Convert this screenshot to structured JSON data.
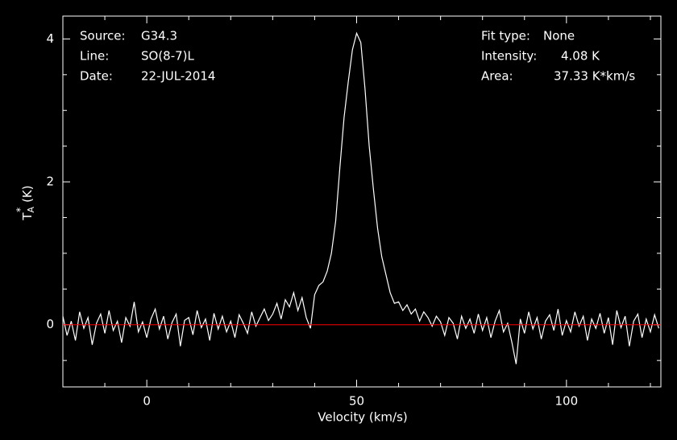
{
  "chart_data": {
    "type": "line",
    "xlabel": "Velocity (km/s)",
    "ylabel": {
      "main": "T",
      "sub": "A",
      "sup": "*",
      "unit": "(K)"
    },
    "annotations_left": [
      [
        "Source:",
        "G34.3"
      ],
      [
        "Line:",
        "SO(8-7)L"
      ],
      [
        "Date:",
        "22-JUL-2014"
      ]
    ],
    "annotations_right": [
      [
        "Fit type:",
        "None"
      ],
      [
        "Intensity:",
        "4.08 K"
      ],
      [
        "Area:",
        "37.33 K*km/s"
      ]
    ],
    "xlim": [
      -20,
      122.5
    ],
    "ylim": [
      -0.87,
      4.32
    ],
    "xticks": [
      0,
      50,
      100
    ],
    "yticks": [
      0,
      2,
      4
    ],
    "xminorticks": [
      -10,
      10,
      20,
      30,
      40,
      60,
      70,
      80,
      90,
      110,
      120
    ],
    "yminorticks": [
      -0.5,
      0.5,
      1,
      1.5,
      2.5,
      3,
      3.5
    ],
    "reference_line": {
      "value": 0,
      "color": "#ff0000"
    },
    "series": [
      {
        "color": "#ffffff",
        "x": [
          -20,
          -19,
          -18,
          -17,
          -16,
          -15,
          -14,
          -13,
          -12,
          -11,
          -10,
          -9,
          -8,
          -7,
          -6,
          -5,
          -4,
          -3,
          -2,
          -1,
          0,
          1,
          2,
          3,
          4,
          5,
          6,
          7,
          8,
          9,
          10,
          11,
          12,
          13,
          14,
          15,
          16,
          17,
          18,
          19,
          20,
          21,
          22,
          23,
          24,
          25,
          26,
          27,
          28,
          29,
          30,
          31,
          32,
          33,
          34,
          35,
          36,
          37,
          38,
          39,
          40,
          41,
          42,
          43,
          44,
          45,
          46,
          47,
          48,
          49,
          50,
          51,
          52,
          53,
          54,
          55,
          56,
          57,
          58,
          59,
          60,
          61,
          62,
          63,
          64,
          65,
          66,
          67,
          68,
          69,
          70,
          71,
          72,
          73,
          74,
          75,
          76,
          77,
          78,
          79,
          80,
          81,
          82,
          83,
          84,
          85,
          86,
          87,
          88,
          89,
          90,
          91,
          92,
          93,
          94,
          95,
          96,
          97,
          98,
          99,
          100,
          101,
          102,
          103,
          104,
          105,
          106,
          107,
          108,
          109,
          110,
          111,
          112,
          113,
          114,
          115,
          116,
          117,
          118,
          119,
          120,
          121,
          122
        ],
        "values": [
          0.12,
          -0.15,
          0.05,
          -0.22,
          0.18,
          -0.05,
          0.1,
          -0.28,
          0.02,
          0.15,
          -0.12,
          0.2,
          -0.08,
          0.05,
          -0.25,
          0.1,
          -0.02,
          0.32,
          -0.1,
          0.04,
          -0.18,
          0.08,
          0.22,
          -0.06,
          0.12,
          -0.2,
          0.03,
          0.15,
          -0.3,
          0.06,
          0.1,
          -0.14,
          0.2,
          -0.04,
          0.08,
          -0.22,
          0.16,
          -0.06,
          0.12,
          -0.1,
          0.05,
          -0.18,
          0.14,
          0.02,
          -0.12,
          0.18,
          -0.02,
          0.1,
          0.22,
          0.06,
          0.15,
          0.3,
          0.08,
          0.35,
          0.25,
          0.45,
          0.2,
          0.38,
          0.1,
          -0.05,
          0.42,
          0.55,
          0.6,
          0.75,
          1.0,
          1.45,
          2.2,
          2.9,
          3.4,
          3.85,
          4.08,
          3.95,
          3.3,
          2.5,
          1.9,
          1.35,
          0.95,
          0.7,
          0.45,
          0.3,
          0.32,
          0.2,
          0.28,
          0.15,
          0.22,
          0.05,
          0.18,
          0.1,
          -0.02,
          0.12,
          0.04,
          -0.15,
          0.1,
          0.02,
          -0.2,
          0.12,
          -0.05,
          0.08,
          -0.12,
          0.15,
          -0.08,
          0.1,
          -0.18,
          0.05,
          0.2,
          -0.1,
          0.02,
          -0.25,
          -0.55,
          0.08,
          -0.12,
          0.18,
          -0.06,
          0.1,
          -0.2,
          0.05,
          0.14,
          -0.08,
          0.22,
          -0.15,
          0.06,
          -0.1,
          0.18,
          -0.02,
          0.12,
          -0.22,
          0.08,
          -0.05,
          0.16,
          -0.12,
          0.1,
          -0.28,
          0.2,
          -0.04,
          0.12,
          -0.3,
          0.05,
          0.15,
          -0.18,
          0.08,
          -0.1,
          0.14,
          -0.05
        ]
      }
    ]
  }
}
